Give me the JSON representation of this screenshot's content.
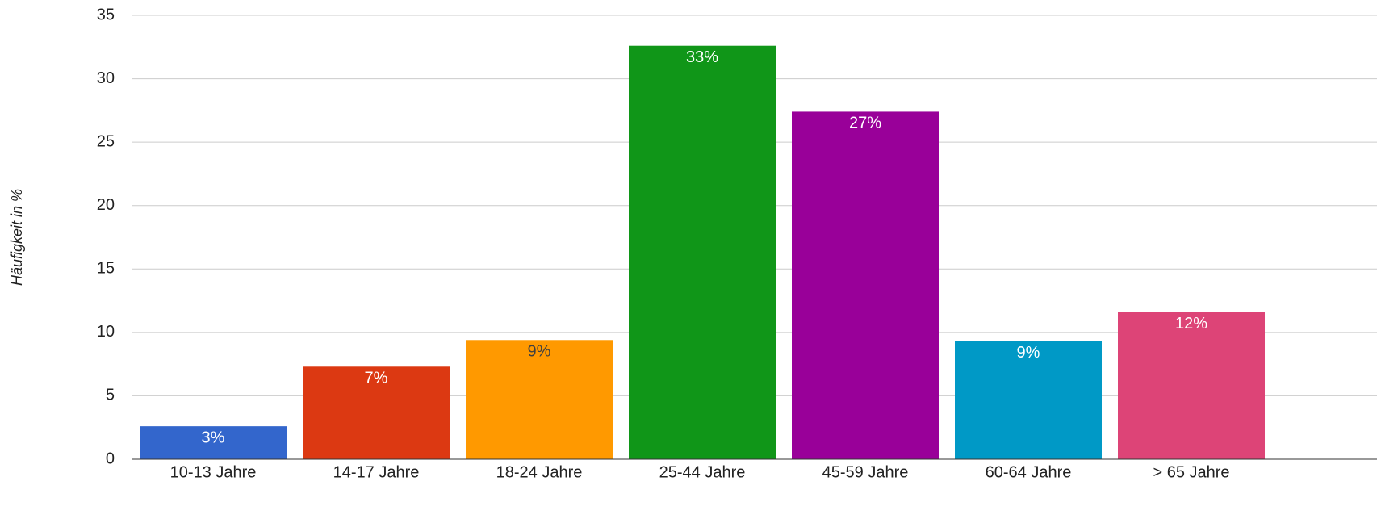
{
  "chart_data": {
    "type": "bar",
    "y_label": "Häufigkeit in %",
    "categories": [
      "10-13 Jahre",
      "14-17 Jahre",
      "18-24 Jahre",
      "25-44 Jahre",
      "45-59 Jahre",
      "60-64 Jahre",
      "> 65 Jahre"
    ],
    "values": [
      2.6,
      7.3,
      9.4,
      32.6,
      27.4,
      9.3,
      11.6
    ],
    "value_labels": [
      "3%",
      "7%",
      "9%",
      "33%",
      "27%",
      "9%",
      "12%"
    ],
    "colors": [
      "#3366cc",
      "#dc3912",
      "#ff9900",
      "#109618",
      "#990099",
      "#0099c6",
      "#dd4477"
    ],
    "value_label_colors": [
      "#ffffff",
      "#ffffff",
      "#404040",
      "#ffffff",
      "#ffffff",
      "#ffffff",
      "#ffffff"
    ],
    "ylim": [
      0,
      35
    ],
    "yticks": [
      0,
      5,
      10,
      15,
      20,
      25,
      30,
      35
    ],
    "grid": true
  }
}
